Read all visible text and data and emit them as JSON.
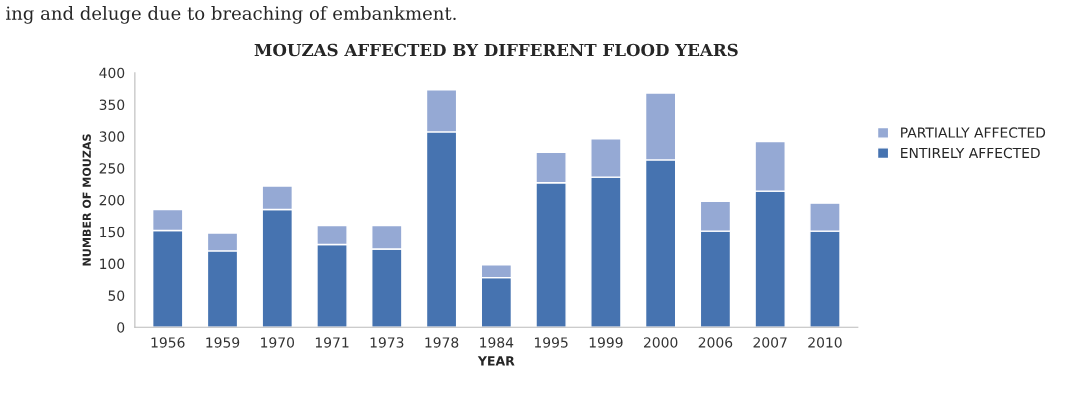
{
  "chart_data": {
    "type": "bar",
    "stacked": true,
    "title": "MOUZAS AFFECTED BY DIFFERENT FLOOD YEARS",
    "xlabel": "YEAR",
    "ylabel": "NUMBER OF MOUZAS",
    "annotations": [
      "ing and deluge due to breaching of embankment."
    ],
    "categories": [
      "1956",
      "1959",
      "1970",
      "1971",
      "1973",
      "1978",
      "1984",
      "1995",
      "1999",
      "2000",
      "2006",
      "2007",
      "2010"
    ],
    "series": [
      {
        "name": "ENTIRELY AFFECTED",
        "color": "#4673b0",
        "values": [
          152,
          120,
          185,
          130,
          123,
          307,
          78,
          227,
          236,
          263,
          151,
          214,
          151
        ]
      },
      {
        "name": "PARTIALLY AFFECTED",
        "color": "#95a9d4",
        "values": [
          33,
          28,
          37,
          30,
          37,
          66,
          20,
          48,
          60,
          105,
          47,
          78,
          44
        ]
      }
    ],
    "ylim": [
      0,
      400
    ],
    "yticks": [
      0,
      50,
      100,
      150,
      200,
      250,
      300,
      350,
      400
    ],
    "grid": false,
    "legend": "right"
  }
}
